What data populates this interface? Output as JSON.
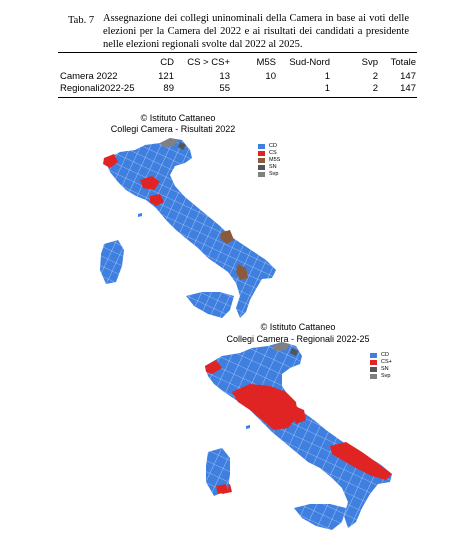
{
  "caption": {
    "label": "Tab. 7",
    "text": "Assegnazione dei collegi uninominali della Camera in base ai voti delle elezioni per la Camera del 2022 e ai risultati dei candidati a presidente nelle elezioni regionali svolte dal 2022 al 2025."
  },
  "table": {
    "headers": [
      "",
      "CD",
      "CS > CS+",
      "M5S",
      "Sud-Nord",
      "Svp",
      "Totale"
    ],
    "rows": [
      [
        "Camera 2022",
        "121",
        "13",
        "10",
        "1",
        "2",
        "147"
      ],
      [
        "Regionali2022-25",
        "89",
        "55",
        "",
        "1",
        "2",
        "147"
      ]
    ]
  },
  "map1": {
    "credit": "© Istituto Cattaneo",
    "subtitle": "Collegi Camera - Risultati 2022",
    "legend": [
      {
        "label": "CD",
        "color": "#3f7fe0"
      },
      {
        "label": "CS",
        "color": "#e02424"
      },
      {
        "label": "M5S",
        "color": "#8b5a3c"
      },
      {
        "label": "SN",
        "color": "#555555"
      },
      {
        "label": "Svp",
        "color": "#808080"
      }
    ]
  },
  "map2": {
    "credit": "© Istituto Cattaneo",
    "subtitle": "Collegi Camera - Regionali 2022-25",
    "legend": [
      {
        "label": "CD",
        "color": "#3f7fe0"
      },
      {
        "label": "CS+",
        "color": "#e02424"
      },
      {
        "label": "SN",
        "color": "#555555"
      },
      {
        "label": "Svp",
        "color": "#808080"
      }
    ]
  }
}
